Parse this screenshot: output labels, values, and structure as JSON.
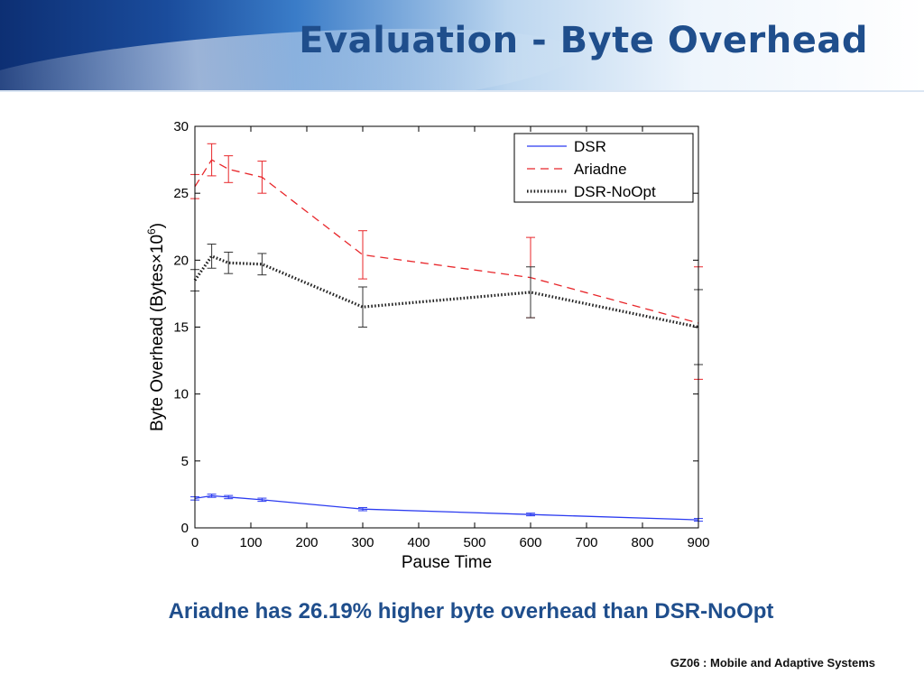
{
  "slide": {
    "title": "Evaluation - Byte Overhead",
    "caption": "Ariadne has 26.19% higher byte overhead than DSR-NoOpt",
    "footer": "GZ06 : Mobile and Adaptive Systems"
  },
  "colors": {
    "title": "#1f4e8c",
    "dsr": "#2b3bf0",
    "ariadne": "#e8262a",
    "dsr_noopt": "#222222"
  },
  "chart_data": {
    "type": "line",
    "xlabel": "Pause Time",
    "ylabel": "Byte Overhead (Bytes×10",
    "ylabel_superscript": "6",
    "ylabel_suffix": ")",
    "xlim": [
      0,
      900
    ],
    "ylim": [
      0,
      30
    ],
    "xticks": [
      0,
      100,
      200,
      300,
      400,
      500,
      600,
      700,
      800,
      900
    ],
    "yticks": [
      0,
      5,
      10,
      15,
      20,
      25,
      30
    ],
    "grid": false,
    "legend_position": "top-right",
    "series": [
      {
        "name": "DSR",
        "style": "solid",
        "color": "#2b3bf0",
        "x": [
          0,
          30,
          60,
          120,
          300,
          600,
          900
        ],
        "y": [
          2.2,
          2.4,
          2.3,
          2.1,
          1.4,
          1.0,
          0.6
        ],
        "err": [
          0.12,
          0.12,
          0.12,
          0.12,
          0.12,
          0.1,
          0.1
        ]
      },
      {
        "name": "Ariadne",
        "style": "dashed",
        "color": "#e8262a",
        "x": [
          0,
          30,
          60,
          120,
          300,
          600,
          900
        ],
        "y": [
          25.5,
          27.5,
          26.8,
          26.2,
          20.4,
          18.7,
          15.3
        ],
        "err": [
          0.9,
          1.2,
          1.0,
          1.2,
          1.8,
          3.0,
          4.2
        ]
      },
      {
        "name": "DSR-NoOpt",
        "style": "dotted",
        "color": "#222222",
        "x": [
          0,
          30,
          60,
          120,
          300,
          600,
          900
        ],
        "y": [
          18.5,
          20.3,
          19.8,
          19.7,
          16.5,
          17.6,
          15.0
        ],
        "err": [
          0.8,
          0.9,
          0.8,
          0.8,
          1.5,
          1.9,
          2.8
        ]
      }
    ]
  }
}
